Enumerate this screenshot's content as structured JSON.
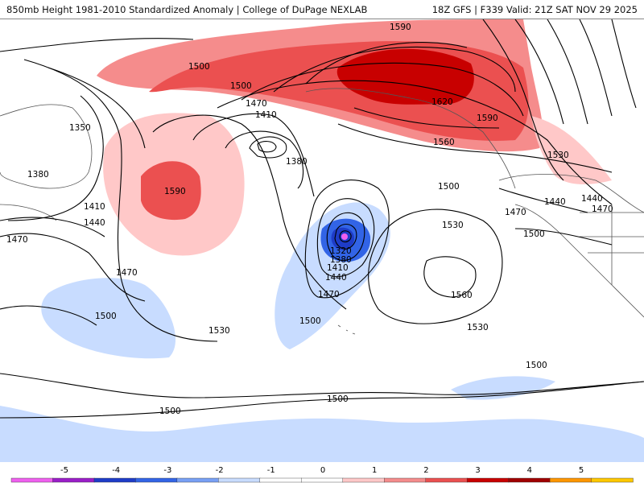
{
  "header": {
    "title": "850mb Height 1981-2010 Standardized Anomaly | College of DuPage NEXLAB",
    "run_info": "18Z GFS | F339 Valid: 21Z SAT NOV 29 2025"
  },
  "contour_labels": [
    "1590",
    "1500",
    "1500",
    "1470",
    "1410",
    "1350",
    "1380",
    "1380",
    "1590",
    "1620",
    "1590",
    "1560",
    "1530",
    "1500",
    "1440",
    "1470",
    "1440",
    "1470",
    "1500",
    "1410",
    "1440",
    "1470",
    "1530",
    "1320",
    "1380",
    "1410",
    "1440",
    "1470",
    "1560",
    "1500",
    "1470",
    "1500",
    "1530",
    "1530",
    "1500",
    "1500",
    "1500"
  ],
  "colorbar": {
    "ticks": [
      "-5",
      "-4",
      "-3",
      "-2",
      "-1",
      "0",
      "1",
      "2",
      "3",
      "4",
      "5"
    ],
    "colors": [
      "#ef5fef",
      "#9a1ec8",
      "#1e3cc8",
      "#3264e6",
      "#78a0f5",
      "#c8dcff",
      "#ffffff",
      "#ffffff",
      "#ffc8c8",
      "#f58c8c",
      "#eb5050",
      "#c80000",
      "#a00000",
      "#ff9600",
      "#ffc800"
    ]
  }
}
